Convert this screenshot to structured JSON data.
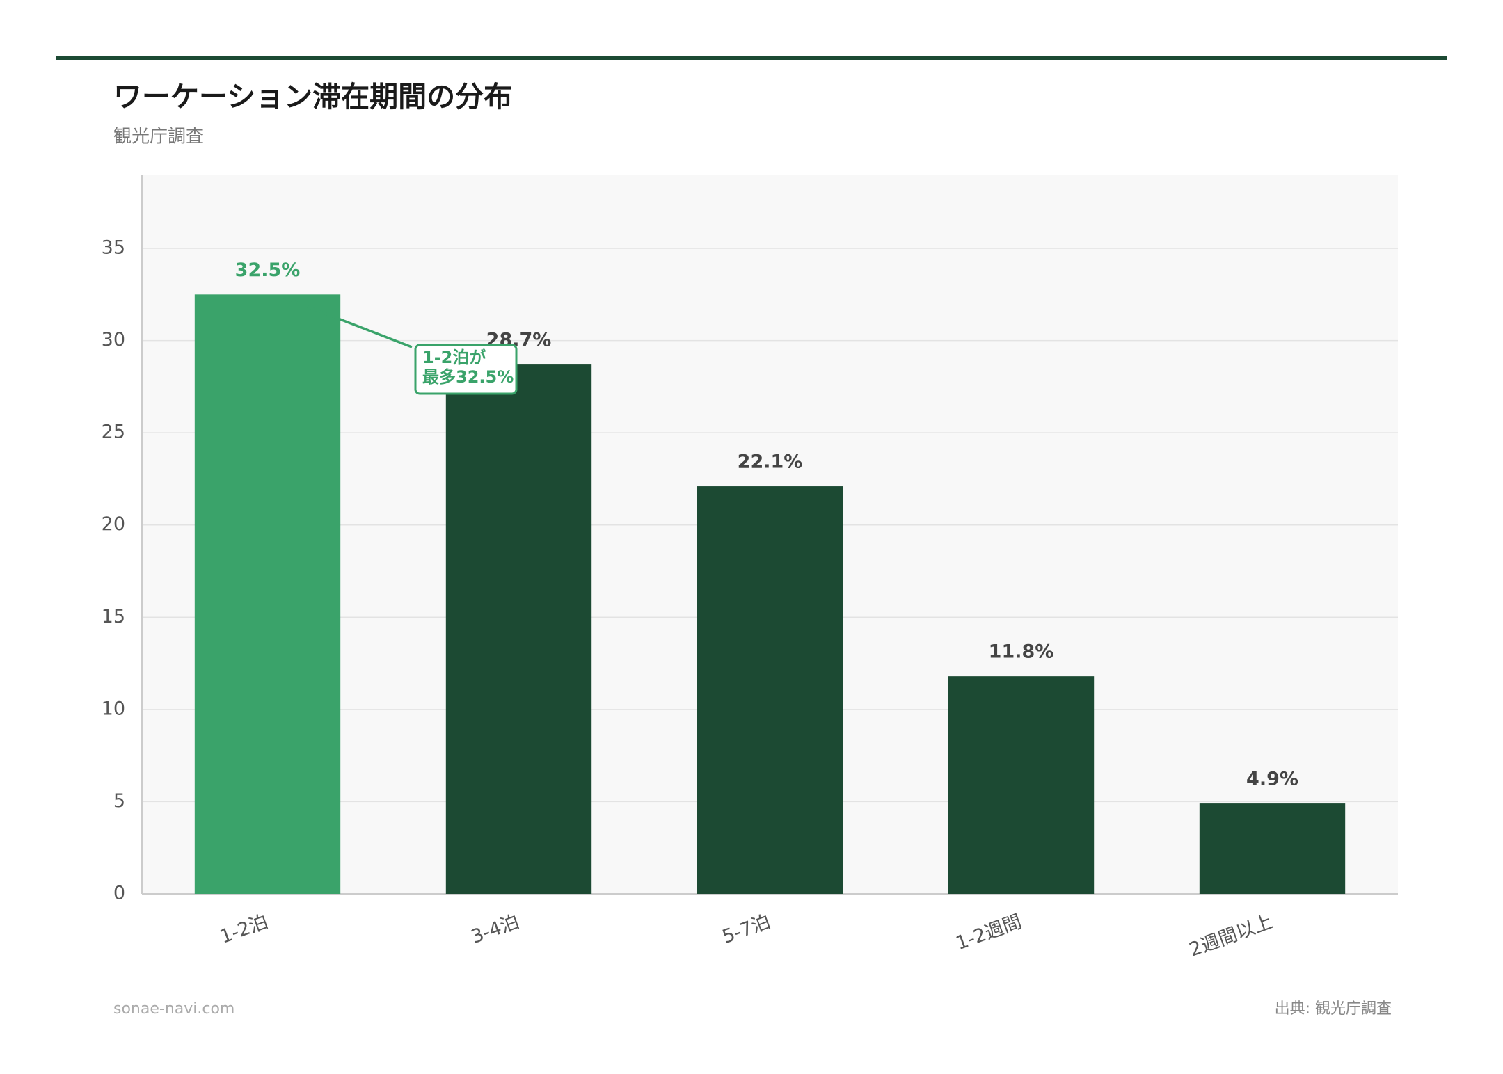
{
  "chart_data": {
    "type": "bar",
    "title": "ワーケーション滞在期間の分布",
    "subtitle": "観光庁調査",
    "categories": [
      "1-2泊",
      "3-4泊",
      "5-7泊",
      "1-2週間",
      "2週間以上"
    ],
    "values": [
      32.5,
      28.7,
      22.1,
      11.8,
      4.9
    ],
    "value_labels": [
      "32.5%",
      "28.7%",
      "22.1%",
      "11.8%",
      "4.9%"
    ],
    "colors": [
      "#3aa36a",
      "#1c4a33",
      "#1c4a33",
      "#1c4a33",
      "#1c4a33"
    ],
    "ylim": [
      0,
      39
    ],
    "yticks": [
      0,
      5,
      10,
      15,
      20,
      25,
      30,
      35
    ],
    "grid": true,
    "annotation": [
      "1-2泊が",
      "最多32.5%"
    ],
    "footer_left": "sonae-navi.com",
    "footer_right": "出典: 観光庁調査"
  }
}
